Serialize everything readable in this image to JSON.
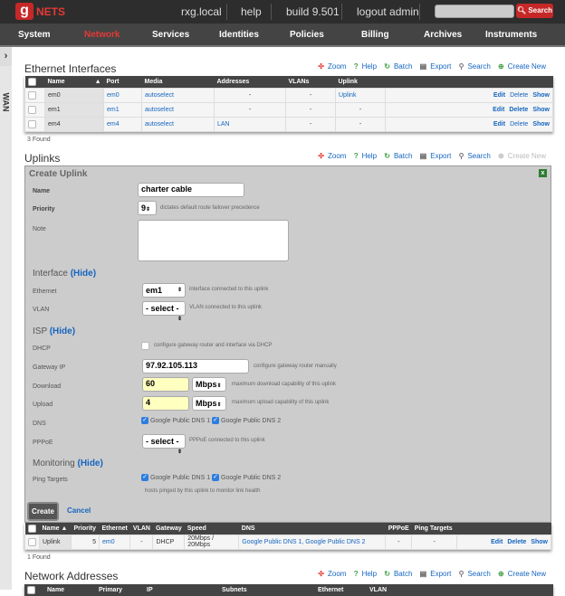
{
  "header": {
    "logo": "NETS",
    "logo_g": "g",
    "links": [
      "rxg.local",
      "help",
      "build 9.501",
      "logout admin"
    ],
    "search_label": "Search",
    "search_value": ""
  },
  "nav": [
    "System",
    "Network",
    "Services",
    "Identities",
    "Policies",
    "Billing",
    "Archives",
    "Instruments"
  ],
  "nav_active": "Network",
  "accent": "#c62828",
  "sidebar": {
    "label": "WAN",
    "toggle": "›"
  },
  "tools": {
    "zoom": "Zoom",
    "help": "Help",
    "batch": "Batch",
    "export": "Export",
    "search": "Search",
    "create": "Create New"
  },
  "ethernet": {
    "title": "Ethernet Interfaces",
    "columns": [
      "Name",
      "Port",
      "Media",
      "Addresses",
      "VLANs",
      "Uplink"
    ],
    "rows": [
      {
        "name": "em0",
        "port": "em0",
        "media": "autoselect",
        "addresses": "-",
        "vlans": "-",
        "uplink": "Uplink",
        "delete_enabled": false
      },
      {
        "name": "em1",
        "port": "em1",
        "media": "autoselect",
        "addresses": "-",
        "vlans": "-",
        "uplink": "-",
        "delete_enabled": true
      },
      {
        "name": "em4",
        "port": "em4",
        "media": "autoselect",
        "addresses": "LAN",
        "vlans": "-",
        "uplink": "-",
        "delete_enabled": false
      }
    ],
    "found": "3 Found",
    "edit": "Edit",
    "delete": "Delete",
    "show": "Show"
  },
  "uplinks": {
    "title": "Uplinks",
    "form": {
      "title": "Create Uplink",
      "close": "x",
      "name_label": "Name",
      "name_value": "charter cable",
      "priority_label": "Priority",
      "priority_value": "9",
      "priority_hint": "dictates default route failover precedence",
      "note_label": "Note",
      "note_value": "",
      "interface_section": "Interface",
      "hide": "(Hide)",
      "ethernet_label": "Ethernet",
      "ethernet_value": "em1",
      "ethernet_hint": "interface connected to this uplink",
      "vlan_label": "VLAN",
      "vlan_value": "- select -",
      "vlan_hint": "VLAN connected to this uplink",
      "isp_section": "ISP",
      "dhcp_label": "DHCP",
      "dhcp_checked": false,
      "dhcp_hint": "configure gateway router and interface via DHCP",
      "gateway_label": "Gateway IP",
      "gateway_value": "97.92.105.113",
      "gateway_hint": "configure gateway router manually",
      "download_label": "Download",
      "download_value": "60",
      "download_unit": "Mbps",
      "download_hint": "maximum download capability of this uplink",
      "upload_label": "Upload",
      "upload_value": "4",
      "upload_unit": "Mbps",
      "upload_hint": "maximum upload capability of this uplink",
      "dns_label": "DNS",
      "dns1": "Google Public DNS 1",
      "dns2": "Google Public DNS 2",
      "pppoe_label": "PPPoE",
      "pppoe_value": "- select -",
      "pppoe_hint": "PPPoE connected to this uplink",
      "monitoring_section": "Monitoring",
      "ping_label": "Ping Targets",
      "ping1": "Google Public DNS 1",
      "ping2": "Google Public DNS 2",
      "ping_hint": "hosts pinged by this uplink to monitor link health",
      "create": "Create",
      "cancel": "Cancel"
    },
    "columns": [
      "Name",
      "Priority",
      "Ethernet",
      "VLAN",
      "Gateway",
      "Speed",
      "DNS",
      "PPPoE",
      "Ping Targets"
    ],
    "rows": [
      {
        "name": "Uplink",
        "priority": "5",
        "ethernet": "em0",
        "vlan": "-",
        "gateway": "DHCP",
        "speed": "20Mbps / 20Mbps",
        "dns": "Google Public DNS 1, Google Public DNS 2",
        "pppoe": "-",
        "ping": "-"
      }
    ],
    "found": "1 Found"
  },
  "addresses": {
    "title": "Network Addresses",
    "columns": [
      "Name",
      "Primary",
      "IP",
      "Subnets",
      "Ethernet",
      "VLAN"
    ]
  }
}
